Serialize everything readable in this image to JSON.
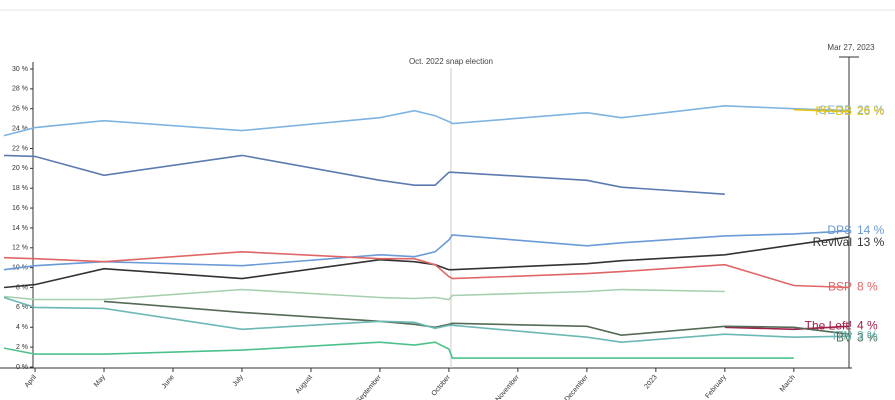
{
  "chart_data": {
    "type": "line",
    "x": [
      -0.45,
      0,
      1,
      3,
      5,
      5.5,
      5.8,
      6,
      6.05,
      8,
      8.5,
      10,
      11,
      11.8
    ],
    "xlim": [
      -0.45,
      11.8
    ],
    "xticks": [
      {
        "value": 0,
        "label": "April"
      },
      {
        "value": 1,
        "label": "May"
      },
      {
        "value": 2,
        "label": "June"
      },
      {
        "value": 3,
        "label": "July"
      },
      {
        "value": 4,
        "label": "August"
      },
      {
        "value": 5,
        "label": "September"
      },
      {
        "value": 6,
        "label": "October"
      },
      {
        "value": 7,
        "label": "November"
      },
      {
        "value": 8,
        "label": "December"
      },
      {
        "value": 9,
        "label": "2023"
      },
      {
        "value": 10,
        "label": "February"
      },
      {
        "value": 11,
        "label": "March"
      }
    ],
    "ylim": [
      0,
      30
    ],
    "yticks": [
      {
        "value": 0,
        "label": "0 %"
      },
      {
        "value": 2,
        "label": "2 %"
      },
      {
        "value": 4,
        "label": "4 %"
      },
      {
        "value": 6,
        "label": "6 %"
      },
      {
        "value": 8,
        "label": "8 %"
      },
      {
        "value": 10,
        "label": "10 %"
      },
      {
        "value": 12,
        "label": "12 %"
      },
      {
        "value": 14,
        "label": "14 %"
      },
      {
        "value": 16,
        "label": "16 %"
      },
      {
        "value": 18,
        "label": "18 %"
      },
      {
        "value": 20,
        "label": "20 %"
      },
      {
        "value": 22,
        "label": "22 %"
      },
      {
        "value": 24,
        "label": "24 %"
      },
      {
        "value": 26,
        "label": "26 %"
      },
      {
        "value": 28,
        "label": "28 %"
      },
      {
        "value": 30,
        "label": "30 %"
      }
    ],
    "annotations": [
      {
        "text": "Oct. 2022 snap election",
        "x": 6.03
      },
      {
        "text": "Mar 27, 2023",
        "x": 11.8
      }
    ],
    "series": [
      {
        "name": "GERB",
        "color": "#7fb3e0",
        "values": [
          23.3,
          24.1,
          24.8,
          23.8,
          25.1,
          25.8,
          25.3,
          24.7,
          24.5,
          25.6,
          25.1,
          26.3,
          26.0,
          25.8
        ],
        "value_labels": [
          null,
          null,
          null,
          null,
          null,
          null,
          null,
          null,
          null,
          null,
          null,
          null,
          null,
          "26 %"
        ]
      },
      {
        "name": "PP-DB",
        "color": "#e3c414",
        "values": [
          null,
          null,
          null,
          null,
          null,
          null,
          null,
          null,
          null,
          null,
          null,
          null,
          25.9,
          25.7
        ],
        "value_labels": [
          null,
          null,
          null,
          null,
          null,
          null,
          null,
          null,
          null,
          null,
          null,
          null,
          null,
          "26 %"
        ]
      },
      {
        "color": "#5b7bb0",
        "values": [
          21.3,
          21.2,
          19.3,
          21.3,
          18.8,
          18.3,
          18.3,
          19.6,
          19.6,
          18.8,
          18.1,
          17.4,
          null,
          null
        ]
      },
      {
        "name": "DPS",
        "color": "#6a9ad8",
        "values": [
          9.8,
          10.2,
          10.6,
          10.2,
          11.3,
          11.1,
          11.6,
          12.8,
          13.3,
          12.2,
          12.5,
          13.2,
          13.4,
          13.7
        ],
        "value_labels": [
          null,
          null,
          null,
          null,
          null,
          null,
          null,
          null,
          null,
          null,
          null,
          null,
          null,
          "14 %"
        ]
      },
      {
        "name": "Revival",
        "color": "#333333",
        "values": [
          8.0,
          8.3,
          9.9,
          8.9,
          10.8,
          10.6,
          10.3,
          9.8,
          9.8,
          10.4,
          10.7,
          11.3,
          12.3,
          13.1
        ],
        "value_labels": [
          null,
          null,
          null,
          null,
          null,
          null,
          null,
          null,
          null,
          null,
          null,
          null,
          null,
          "13 %"
        ]
      },
      {
        "name": "BSP",
        "color": "#e06666",
        "values": [
          11.0,
          10.9,
          10.6,
          11.6,
          10.9,
          10.9,
          10.3,
          9.1,
          8.9,
          9.4,
          9.6,
          10.3,
          8.2,
          8.0
        ],
        "value_labels": [
          null,
          null,
          null,
          null,
          null,
          null,
          null,
          null,
          null,
          null,
          null,
          null,
          null,
          "8 %"
        ]
      },
      {
        "color": "#a6cfae",
        "values": [
          7.1,
          6.8,
          6.8,
          7.8,
          7.0,
          6.9,
          7.0,
          6.8,
          7.2,
          7.6,
          7.8,
          7.6,
          null,
          null
        ]
      },
      {
        "name": "The Left!",
        "color": "#a02048",
        "values": [
          null,
          null,
          null,
          null,
          null,
          null,
          null,
          null,
          null,
          null,
          null,
          4.0,
          3.8,
          4.1
        ],
        "value_labels": [
          null,
          null,
          null,
          null,
          null,
          null,
          null,
          null,
          null,
          null,
          null,
          null,
          null,
          "4 %"
        ]
      },
      {
        "name": "BV",
        "color": "#556b55",
        "values": [
          null,
          null,
          6.6,
          5.5,
          4.6,
          4.3,
          4.0,
          4.3,
          4.4,
          4.1,
          3.2,
          4.1,
          4.0,
          3.3
        ],
        "value_labels": [
          null,
          null,
          null,
          null,
          null,
          null,
          null,
          null,
          null,
          null,
          null,
          null,
          null,
          "3 %"
        ]
      },
      {
        "name": "ITN",
        "color": "#6cb8b5",
        "values": [
          7.0,
          6.0,
          5.9,
          3.8,
          4.6,
          4.5,
          3.9,
          4.2,
          4.2,
          3.0,
          2.5,
          3.3,
          3.0,
          3.1
        ],
        "value_labels": [
          null,
          null,
          null,
          null,
          null,
          null,
          null,
          null,
          null,
          null,
          null,
          null,
          null,
          "3 %"
        ]
      },
      {
        "color": "#4cc28a",
        "values": [
          1.9,
          1.3,
          1.3,
          1.7,
          2.5,
          2.2,
          2.5,
          1.8,
          0.9,
          0.9,
          0.9,
          0.9,
          0.9,
          null
        ]
      }
    ]
  }
}
